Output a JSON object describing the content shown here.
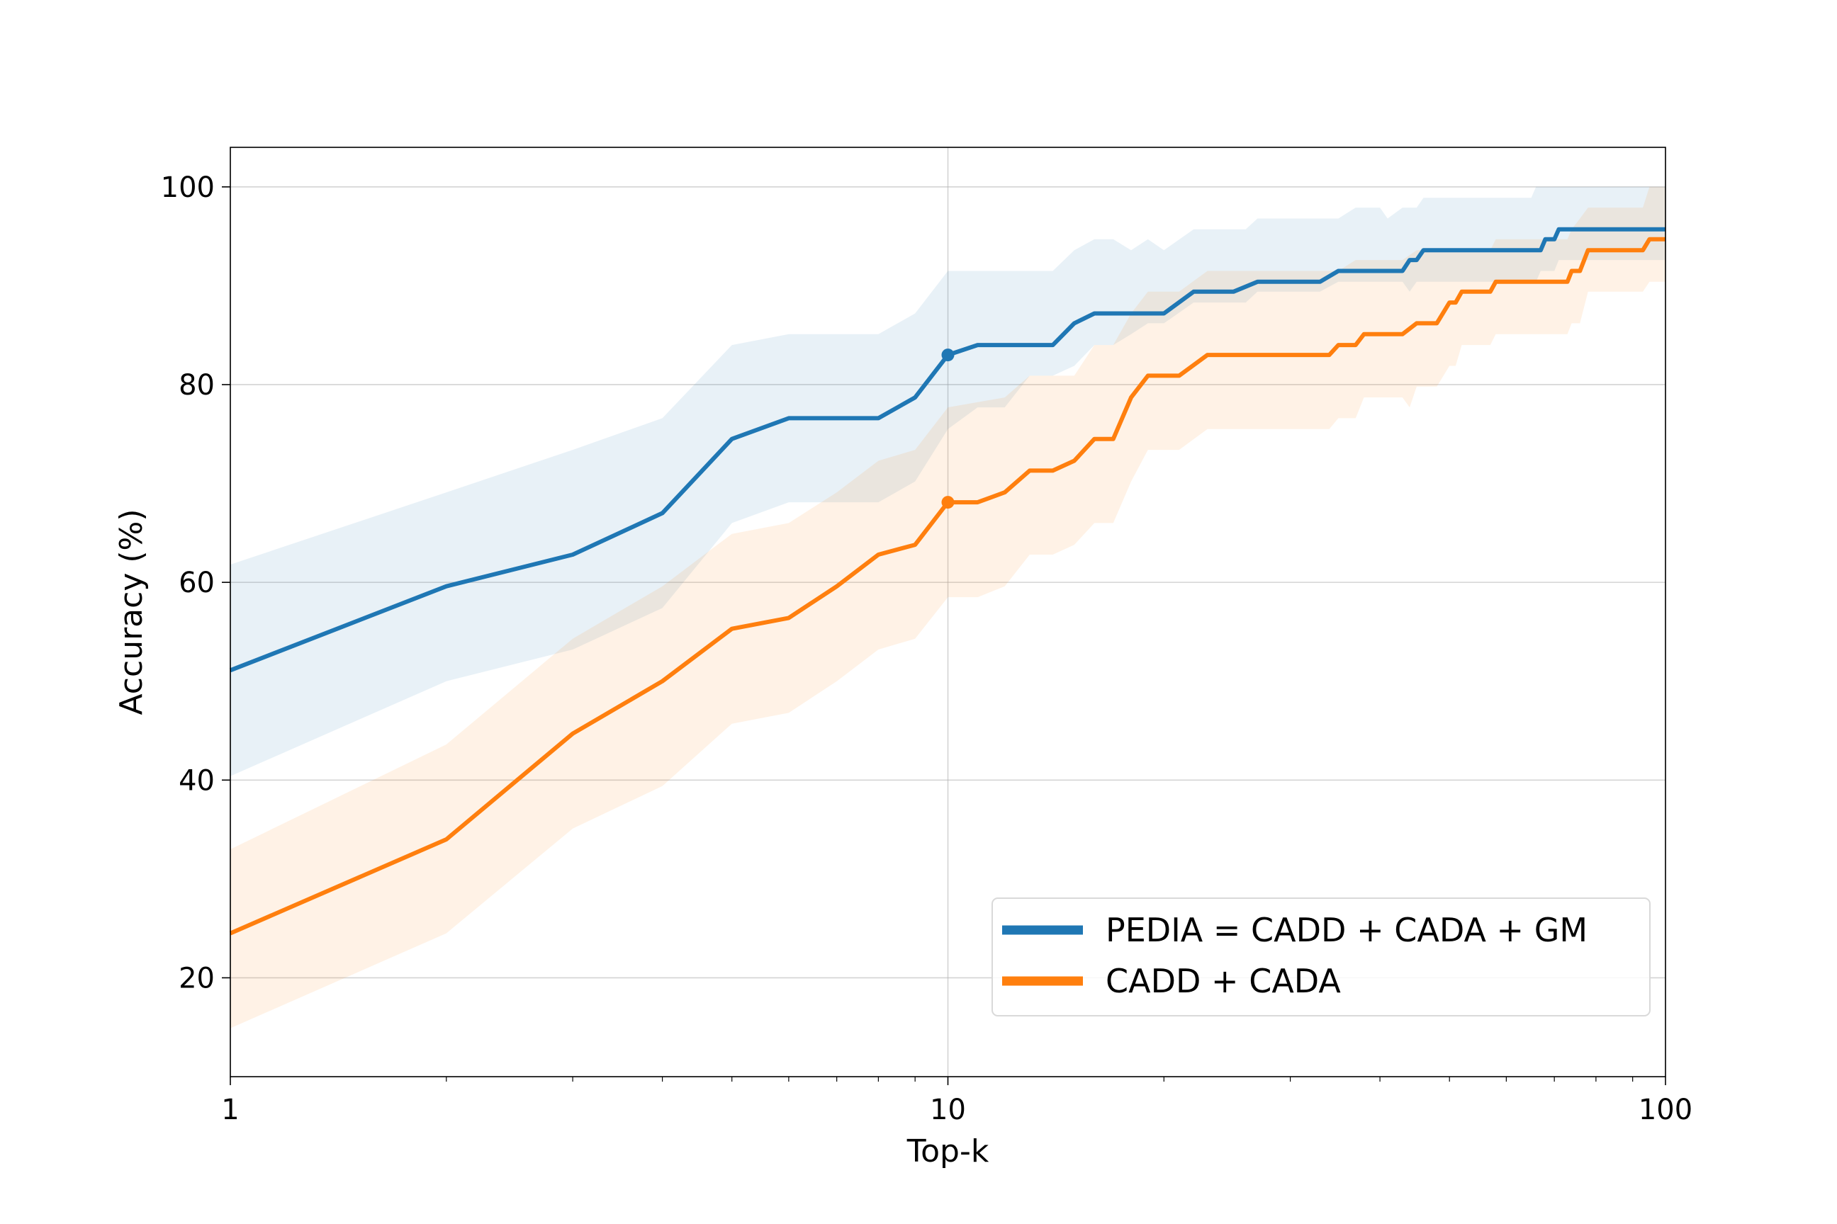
{
  "chart_data": {
    "type": "line",
    "xlabel": "Top-k",
    "ylabel": "Accuracy (%)",
    "xscale": "log",
    "xlim": [
      1,
      100
    ],
    "ylim": [
      10,
      104
    ],
    "xticks": [
      1,
      10,
      100
    ],
    "xtick_labels": [
      "1",
      "10",
      "100"
    ],
    "yticks": [
      20,
      40,
      60,
      80,
      100
    ],
    "ytick_labels": [
      "20",
      "40",
      "60",
      "80",
      "100"
    ],
    "grid": true,
    "legend_position": "lower-right",
    "highlight_x": 10,
    "series": [
      {
        "name": "PEDIA = CADD + CADA + GM",
        "color": "#1f77b4",
        "band_color": "#1f77b4",
        "band_opacity": 0.1,
        "points": [
          [
            1,
            51.1
          ],
          [
            2,
            59.6
          ],
          [
            3,
            62.8
          ],
          [
            4,
            67.0
          ],
          [
            5,
            74.5
          ],
          [
            6,
            76.6
          ],
          [
            7,
            76.6
          ],
          [
            8,
            76.6
          ],
          [
            9,
            78.7
          ],
          [
            10,
            83.0
          ],
          [
            11,
            84.0
          ],
          [
            12,
            84.0
          ],
          [
            13,
            84.0
          ],
          [
            14,
            84.0
          ],
          [
            15,
            86.2
          ],
          [
            16,
            87.2
          ],
          [
            18,
            87.2
          ],
          [
            20,
            87.2
          ],
          [
            22,
            89.4
          ],
          [
            25,
            89.4
          ],
          [
            27,
            90.4
          ],
          [
            30,
            90.4
          ],
          [
            33,
            90.4
          ],
          [
            35,
            91.5
          ],
          [
            40,
            91.5
          ],
          [
            43,
            91.5
          ],
          [
            44,
            92.6
          ],
          [
            45,
            92.6
          ],
          [
            46,
            93.6
          ],
          [
            50,
            93.6
          ],
          [
            60,
            93.6
          ],
          [
            67,
            93.6
          ],
          [
            68,
            94.7
          ],
          [
            70,
            94.7
          ],
          [
            71,
            95.7
          ],
          [
            80,
            95.7
          ],
          [
            100,
            95.7
          ]
        ],
        "upper": [
          [
            1,
            61.8
          ],
          [
            2,
            69.1
          ],
          [
            3,
            73.4
          ],
          [
            4,
            76.6
          ],
          [
            5,
            84.0
          ],
          [
            6,
            85.1
          ],
          [
            8,
            85.1
          ],
          [
            9,
            87.2
          ],
          [
            10,
            91.5
          ],
          [
            14,
            91.5
          ],
          [
            15,
            93.6
          ],
          [
            16,
            94.7
          ],
          [
            17,
            94.7
          ],
          [
            18,
            93.6
          ],
          [
            19,
            94.7
          ],
          [
            20,
            93.6
          ],
          [
            22,
            95.7
          ],
          [
            26,
            95.7
          ],
          [
            27,
            96.8
          ],
          [
            33,
            96.8
          ],
          [
            35,
            96.8
          ],
          [
            37,
            97.9
          ],
          [
            40,
            97.9
          ],
          [
            41,
            96.8
          ],
          [
            43,
            97.9
          ],
          [
            45,
            97.9
          ],
          [
            46,
            98.9
          ],
          [
            50,
            98.9
          ],
          [
            55,
            98.9
          ],
          [
            60,
            98.9
          ],
          [
            65,
            98.9
          ],
          [
            66,
            100
          ],
          [
            100,
            100
          ]
        ],
        "lower": [
          [
            1,
            40.4
          ],
          [
            2,
            50.0
          ],
          [
            3,
            53.2
          ],
          [
            4,
            57.4
          ],
          [
            5,
            66.0
          ],
          [
            6,
            68.1
          ],
          [
            8,
            68.1
          ],
          [
            9,
            70.2
          ],
          [
            10,
            75.5
          ],
          [
            11,
            77.7
          ],
          [
            12,
            77.7
          ],
          [
            13,
            80.9
          ],
          [
            14,
            80.9
          ],
          [
            15,
            81.9
          ],
          [
            16,
            84.0
          ],
          [
            17,
            84.0
          ],
          [
            18,
            85.1
          ],
          [
            19,
            86.2
          ],
          [
            20,
            86.2
          ],
          [
            22,
            88.3
          ],
          [
            26,
            88.3
          ],
          [
            27,
            89.4
          ],
          [
            33,
            89.4
          ],
          [
            35,
            90.4
          ],
          [
            40,
            90.4
          ],
          [
            43,
            90.4
          ],
          [
            44,
            89.4
          ],
          [
            45,
            90.4
          ],
          [
            50,
            90.4
          ],
          [
            60,
            90.4
          ],
          [
            66,
            90.4
          ],
          [
            67,
            91.5
          ],
          [
            70,
            91.5
          ],
          [
            71,
            92.6
          ],
          [
            100,
            92.6
          ]
        ]
      },
      {
        "name": "CADD + CADA",
        "color": "#ff7f0e",
        "band_color": "#ff7f0e",
        "band_opacity": 0.1,
        "points": [
          [
            1,
            24.5
          ],
          [
            2,
            34.0
          ],
          [
            3,
            44.7
          ],
          [
            4,
            50.0
          ],
          [
            5,
            55.3
          ],
          [
            6,
            56.4
          ],
          [
            7,
            59.6
          ],
          [
            8,
            62.8
          ],
          [
            9,
            63.8
          ],
          [
            10,
            68.1
          ],
          [
            11,
            68.1
          ],
          [
            12,
            69.1
          ],
          [
            13,
            71.3
          ],
          [
            14,
            71.3
          ],
          [
            15,
            72.3
          ],
          [
            16,
            74.5
          ],
          [
            17,
            74.5
          ],
          [
            18,
            78.7
          ],
          [
            19,
            80.9
          ],
          [
            21,
            80.9
          ],
          [
            23,
            83.0
          ],
          [
            34,
            83.0
          ],
          [
            35,
            84.0
          ],
          [
            37,
            84.0
          ],
          [
            38,
            85.1
          ],
          [
            43,
            85.1
          ],
          [
            45,
            86.2
          ],
          [
            48,
            86.2
          ],
          [
            50,
            88.3
          ],
          [
            51,
            88.3
          ],
          [
            52,
            89.4
          ],
          [
            57,
            89.4
          ],
          [
            58,
            90.4
          ],
          [
            73,
            90.4
          ],
          [
            74,
            91.5
          ],
          [
            76,
            91.5
          ],
          [
            78,
            93.6
          ],
          [
            93,
            93.6
          ],
          [
            95,
            94.7
          ],
          [
            100,
            94.7
          ]
        ],
        "upper": [
          [
            1,
            33.0
          ],
          [
            2,
            43.6
          ],
          [
            3,
            54.3
          ],
          [
            4,
            59.6
          ],
          [
            5,
            64.9
          ],
          [
            6,
            66.0
          ],
          [
            7,
            69.1
          ],
          [
            8,
            72.3
          ],
          [
            9,
            73.4
          ],
          [
            10,
            77.7
          ],
          [
            12,
            78.7
          ],
          [
            13,
            80.9
          ],
          [
            14,
            80.9
          ],
          [
            15,
            80.9
          ],
          [
            16,
            84.0
          ],
          [
            17,
            84.0
          ],
          [
            18,
            87.2
          ],
          [
            19,
            89.4
          ],
          [
            21,
            89.4
          ],
          [
            23,
            91.5
          ],
          [
            35,
            91.5
          ],
          [
            37,
            92.6
          ],
          [
            43,
            92.6
          ],
          [
            45,
            93.6
          ],
          [
            57,
            93.6
          ],
          [
            58,
            94.7
          ],
          [
            73,
            94.7
          ],
          [
            74,
            95.7
          ],
          [
            76,
            96.8
          ],
          [
            78,
            97.9
          ],
          [
            93,
            97.9
          ],
          [
            95,
            100
          ],
          [
            100,
            100
          ]
        ],
        "lower": [
          [
            1,
            14.9
          ],
          [
            2,
            24.5
          ],
          [
            3,
            35.1
          ],
          [
            4,
            39.4
          ],
          [
            5,
            45.7
          ],
          [
            6,
            46.8
          ],
          [
            7,
            50.0
          ],
          [
            8,
            53.2
          ],
          [
            9,
            54.3
          ],
          [
            10,
            58.5
          ],
          [
            11,
            58.5
          ],
          [
            12,
            59.6
          ],
          [
            13,
            62.8
          ],
          [
            14,
            62.8
          ],
          [
            15,
            63.8
          ],
          [
            16,
            66.0
          ],
          [
            17,
            66.0
          ],
          [
            18,
            70.2
          ],
          [
            19,
            73.4
          ],
          [
            21,
            73.4
          ],
          [
            23,
            75.5
          ],
          [
            34,
            75.5
          ],
          [
            35,
            76.6
          ],
          [
            37,
            76.6
          ],
          [
            38,
            78.7
          ],
          [
            43,
            78.7
          ],
          [
            44,
            77.7
          ],
          [
            45,
            79.8
          ],
          [
            48,
            79.8
          ],
          [
            50,
            81.9
          ],
          [
            51,
            81.9
          ],
          [
            52,
            84.0
          ],
          [
            57,
            84.0
          ],
          [
            58,
            85.1
          ],
          [
            73,
            85.1
          ],
          [
            74,
            86.2
          ],
          [
            76,
            86.2
          ],
          [
            78,
            89.4
          ],
          [
            93,
            89.4
          ],
          [
            95,
            90.4
          ],
          [
            100,
            90.4
          ]
        ]
      }
    ]
  }
}
